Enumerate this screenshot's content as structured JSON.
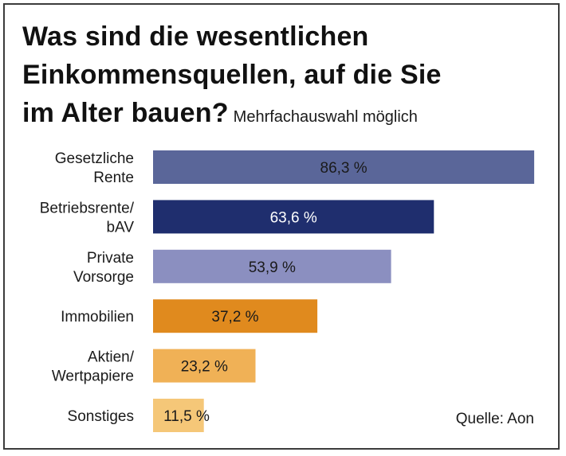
{
  "title": {
    "line1": "Was sind die wesentlichen",
    "line2": "Einkommensquellen, auf die Sie",
    "line3": "im Alter bauen?",
    "subtitle": "Mehrfachauswahl möglich"
  },
  "source": "Quelle: Aon",
  "chart_data": {
    "type": "bar",
    "orientation": "horizontal",
    "title": "Was sind die wesentlichen Einkommensquellen, auf die Sie im Alter bauen?",
    "subtitle": "Mehrfachauswahl möglich",
    "categories": [
      [
        "Gesetzliche",
        "Rente"
      ],
      [
        "Betriebsrente/",
        "bAV"
      ],
      [
        "Private",
        "Vorsorge"
      ],
      [
        "Immobilien"
      ],
      [
        "Aktien/",
        "Wertpapiere"
      ],
      [
        "Sonstiges"
      ]
    ],
    "values": [
      86.3,
      63.6,
      53.9,
      37.2,
      23.2,
      11.5
    ],
    "value_labels": [
      "86,3 %",
      "63,6 %",
      "53,9 %",
      "37,2 %",
      "23,2 %",
      "11,5 %"
    ],
    "unit": "%",
    "xlim": [
      0,
      100
    ],
    "grid": false,
    "legend": "none",
    "colors": [
      "#5a6699",
      "#1f2e6e",
      "#8b8fc0",
      "#e08a1e",
      "#f0b156",
      "#f5c778"
    ],
    "label_colors": [
      "#1a1a1a",
      "#ffffff",
      "#1a1a1a",
      "#1a1a1a",
      "#1a1a1a",
      "#1a1a1a"
    ]
  }
}
